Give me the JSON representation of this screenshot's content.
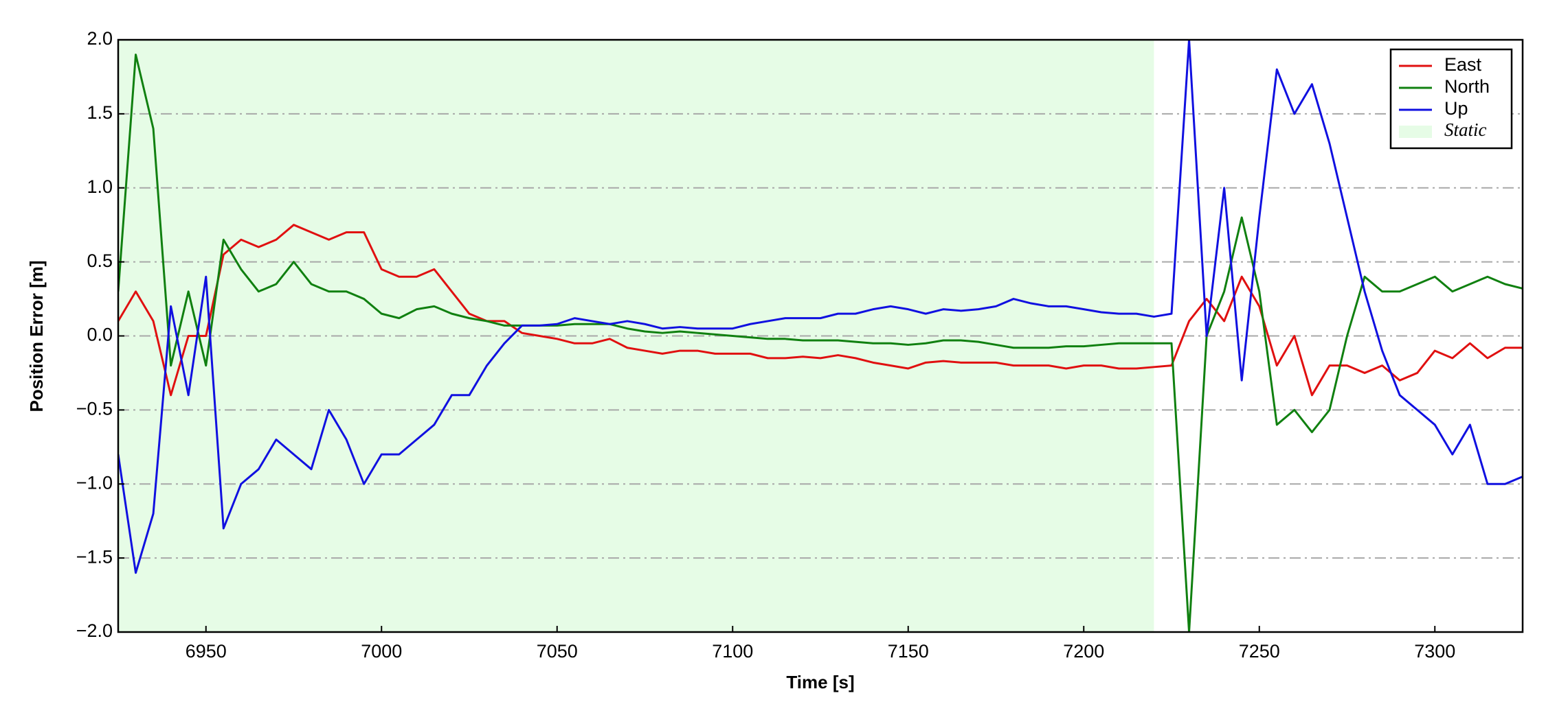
{
  "chart_data": {
    "type": "line",
    "x_label": "Time [s]",
    "y_label": "Position Error [m]",
    "xlim": [
      6925,
      7325
    ],
    "xticks": [
      6950,
      7000,
      7050,
      7100,
      7150,
      7200,
      7250,
      7300
    ],
    "ylim": [
      -2.0,
      2.0
    ],
    "yticks": [
      {
        "value": -2.0,
        "label": "−2.0"
      },
      {
        "value": -1.5,
        "label": "−1.5"
      },
      {
        "value": -1.0,
        "label": "−1.0"
      },
      {
        "value": -0.5,
        "label": "−0.5"
      },
      {
        "value": 0.0,
        "label": "0.0"
      },
      {
        "value": 0.5,
        "label": "0.5"
      },
      {
        "value": 1.0,
        "label": "1.0"
      },
      {
        "value": 1.5,
        "label": "1.5"
      },
      {
        "value": 2.0,
        "label": "2.0"
      }
    ],
    "grid": true,
    "legend": "upper right",
    "shaded_regions": [
      {
        "name": "Static",
        "color": "#e6fce6",
        "x": [
          6925,
          7220
        ]
      }
    ],
    "x": [
      6925,
      6930,
      6935,
      6940,
      6945,
      6950,
      6955,
      6960,
      6965,
      6970,
      6975,
      6980,
      6985,
      6990,
      6995,
      7000,
      7005,
      7010,
      7015,
      7020,
      7025,
      7030,
      7035,
      7040,
      7045,
      7050,
      7055,
      7060,
      7065,
      7070,
      7075,
      7080,
      7085,
      7090,
      7095,
      7100,
      7105,
      7110,
      7115,
      7120,
      7125,
      7130,
      7135,
      7140,
      7145,
      7150,
      7155,
      7160,
      7165,
      7170,
      7175,
      7180,
      7185,
      7190,
      7195,
      7200,
      7205,
      7210,
      7215,
      7220,
      7225,
      7230,
      7235,
      7240,
      7245,
      7250,
      7255,
      7260,
      7265,
      7270,
      7275,
      7280,
      7285,
      7290,
      7295,
      7300,
      7305,
      7310,
      7315,
      7320,
      7325
    ],
    "series": [
      {
        "name": "East",
        "color": "#e01010",
        "values": [
          0.1,
          0.3,
          0.1,
          -0.4,
          0.0,
          0.0,
          0.55,
          0.65,
          0.6,
          0.65,
          0.75,
          0.7,
          0.65,
          0.7,
          0.7,
          0.45,
          0.4,
          0.4,
          0.45,
          0.3,
          0.15,
          0.1,
          0.1,
          0.02,
          0.0,
          -0.02,
          -0.05,
          -0.05,
          -0.02,
          -0.08,
          -0.1,
          -0.12,
          -0.1,
          -0.1,
          -0.12,
          -0.12,
          -0.12,
          -0.15,
          -0.15,
          -0.14,
          -0.15,
          -0.13,
          -0.15,
          -0.18,
          -0.2,
          -0.22,
          -0.18,
          -0.17,
          -0.18,
          -0.18,
          -0.18,
          -0.2,
          -0.2,
          -0.2,
          -0.22,
          -0.2,
          -0.2,
          -0.22,
          -0.22,
          -0.21,
          -0.2,
          0.1,
          0.25,
          0.1,
          0.4,
          0.2,
          -0.2,
          0.0,
          -0.4,
          -0.2,
          -0.2,
          -0.25,
          -0.2,
          -0.3,
          -0.25,
          -0.1,
          -0.15,
          -0.05,
          -0.15,
          -0.08,
          -0.08
        ]
      },
      {
        "name": "North",
        "color": "#108010",
        "values": [
          0.3,
          1.9,
          1.4,
          -0.2,
          0.3,
          -0.2,
          0.65,
          0.45,
          0.3,
          0.35,
          0.5,
          0.35,
          0.3,
          0.3,
          0.25,
          0.15,
          0.12,
          0.18,
          0.2,
          0.15,
          0.12,
          0.1,
          0.07,
          0.07,
          0.07,
          0.07,
          0.08,
          0.08,
          0.08,
          0.05,
          0.03,
          0.02,
          0.03,
          0.02,
          0.01,
          0.0,
          -0.01,
          -0.02,
          -0.02,
          -0.03,
          -0.03,
          -0.03,
          -0.04,
          -0.05,
          -0.05,
          -0.06,
          -0.05,
          -0.03,
          -0.03,
          -0.04,
          -0.06,
          -0.08,
          -0.08,
          -0.08,
          -0.07,
          -0.07,
          -0.06,
          -0.05,
          -0.05,
          -0.05,
          -0.05,
          -2.0,
          0.0,
          0.3,
          0.8,
          0.3,
          -0.6,
          -0.5,
          -0.65,
          -0.5,
          0.0,
          0.4,
          0.3,
          0.3,
          0.35,
          0.4,
          0.3,
          0.35,
          0.4,
          0.35,
          0.32
        ]
      },
      {
        "name": "Up",
        "color": "#1010e0",
        "values": [
          -0.8,
          -1.6,
          -1.2,
          0.2,
          -0.4,
          0.4,
          -1.3,
          -1.0,
          -0.9,
          -0.7,
          -0.8,
          -0.9,
          -0.5,
          -0.7,
          -1.0,
          -0.8,
          -0.8,
          -0.7,
          -0.6,
          -0.4,
          -0.4,
          -0.2,
          -0.05,
          0.07,
          0.07,
          0.08,
          0.12,
          0.1,
          0.08,
          0.1,
          0.08,
          0.05,
          0.06,
          0.05,
          0.05,
          0.05,
          0.08,
          0.1,
          0.12,
          0.12,
          0.12,
          0.15,
          0.15,
          0.18,
          0.2,
          0.18,
          0.15,
          0.18,
          0.17,
          0.18,
          0.2,
          0.25,
          0.22,
          0.2,
          0.2,
          0.18,
          0.16,
          0.15,
          0.15,
          0.13,
          0.15,
          2.0,
          0.0,
          1.0,
          -0.3,
          0.8,
          1.8,
          1.5,
          1.7,
          1.3,
          0.8,
          0.3,
          -0.1,
          -0.4,
          -0.5,
          -0.6,
          -0.8,
          -0.6,
          -1.0,
          -1.0,
          -0.95
        ]
      }
    ]
  }
}
